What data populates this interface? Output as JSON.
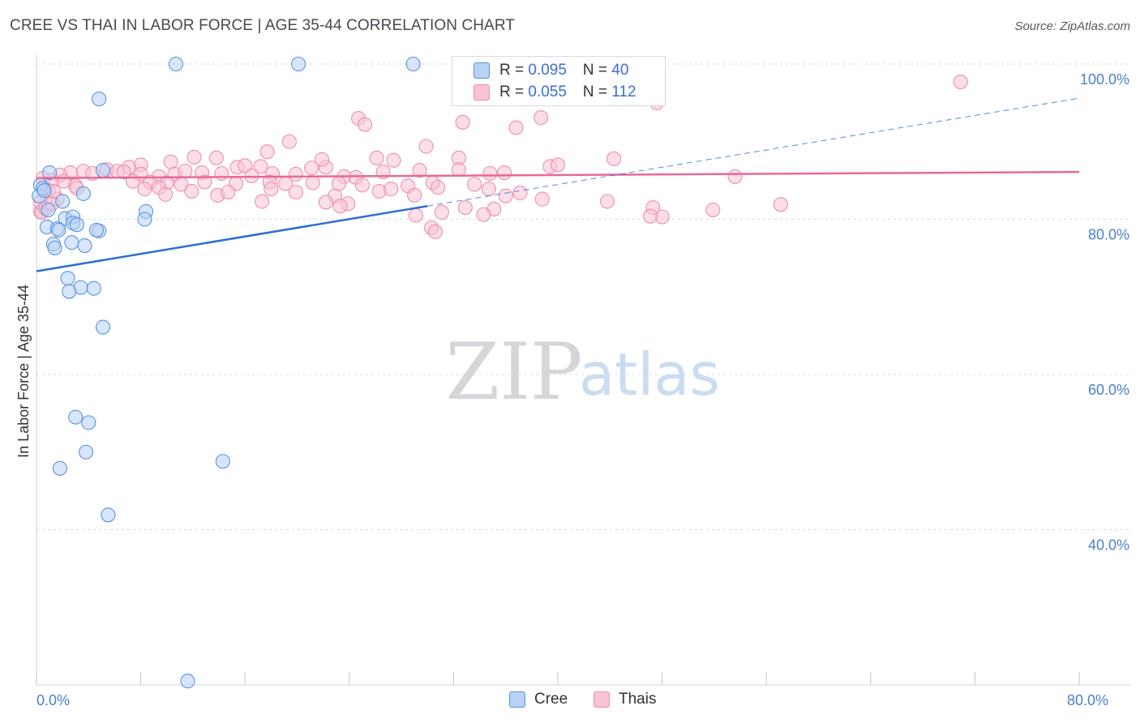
{
  "title": "CREE VS THAI IN LABOR FORCE | AGE 35-44 CORRELATION CHART",
  "source": "Source: ZipAtlas.com",
  "watermark": {
    "zip": "ZIP",
    "atlas": "atlas"
  },
  "colors": {
    "cree_fill": "#b7d2f5",
    "cree_stroke": "#5b93de",
    "cree_line": "#2d6fd0",
    "thai_fill": "#f8c3d4",
    "thai_stroke": "#ec8fb0",
    "thai_line": "#e8689a",
    "axis_text": "#4a7fd0",
    "grid": "#d5d8dc"
  },
  "legend": {
    "cree": {
      "r_label": "R = ",
      "r_value": "0.095",
      "n_label": "N = ",
      "n_value": "40"
    },
    "thai": {
      "r_label": "R = ",
      "r_value": "0.055",
      "n_label": "N = ",
      "n_value": "112"
    }
  },
  "bottom_legend": {
    "cree": "Cree",
    "thai": "Thais"
  },
  "chart_data": {
    "type": "scatter",
    "title": "CREE VS THAI IN LABOR FORCE | AGE 35-44 CORRELATION CHART",
    "xlabel": "",
    "ylabel": "In Labor Force | Age 35-44",
    "xlim": [
      0,
      80
    ],
    "ylim": [
      20,
      100
    ],
    "x_tick_labels": [
      {
        "value": 0,
        "label": "0.0%"
      },
      {
        "value": 80,
        "label": "80.0%"
      }
    ],
    "y_tick_labels": [
      {
        "value": 100,
        "label": "100.0%"
      },
      {
        "value": 80,
        "label": "80.0%"
      },
      {
        "value": 60,
        "label": "60.0%"
      },
      {
        "value": 40,
        "label": "40.0%"
      }
    ],
    "series": [
      {
        "name": "Cree",
        "points": [
          [
            10.7,
            100
          ],
          [
            20.1,
            100
          ],
          [
            28.9,
            100
          ],
          [
            4.8,
            95.5
          ],
          [
            1.0,
            86.0
          ],
          [
            5.1,
            86.3
          ],
          [
            0.3,
            84.4
          ],
          [
            0.2,
            83.0
          ],
          [
            3.6,
            83.3
          ],
          [
            2.0,
            82.3
          ],
          [
            0.9,
            81.2
          ],
          [
            8.4,
            81.0
          ],
          [
            2.2,
            80.1
          ],
          [
            2.8,
            80.3
          ],
          [
            2.8,
            79.5
          ],
          [
            0.8,
            79.0
          ],
          [
            1.6,
            78.8
          ],
          [
            1.7,
            78.6
          ],
          [
            4.8,
            78.5
          ],
          [
            8.3,
            80.0
          ],
          [
            1.3,
            76.8
          ],
          [
            2.7,
            77.0
          ],
          [
            3.7,
            76.6
          ],
          [
            1.4,
            76.3
          ],
          [
            2.4,
            72.4
          ],
          [
            3.4,
            71.2
          ],
          [
            4.4,
            71.1
          ],
          [
            2.5,
            70.7
          ],
          [
            5.1,
            66.1
          ],
          [
            3.0,
            54.5
          ],
          [
            4.0,
            53.8
          ],
          [
            3.8,
            50.0
          ],
          [
            1.8,
            47.9
          ],
          [
            14.3,
            48.8
          ],
          [
            5.5,
            41.9
          ],
          [
            11.6,
            20.5
          ],
          [
            0.5,
            84.0
          ],
          [
            4.6,
            78.6
          ],
          [
            0.6,
            83.7
          ],
          [
            3.1,
            79.3
          ]
        ]
      },
      {
        "name": "Thais",
        "points": [
          [
            70.9,
            97.7
          ],
          [
            47.6,
            95.0
          ],
          [
            24.7,
            93.0
          ],
          [
            25.2,
            92.2
          ],
          [
            32.7,
            92.5
          ],
          [
            36.8,
            91.8
          ],
          [
            38.7,
            93.1
          ],
          [
            19.4,
            90.0
          ],
          [
            29.9,
            89.4
          ],
          [
            17.7,
            88.7
          ],
          [
            12.1,
            88.0
          ],
          [
            13.8,
            87.9
          ],
          [
            26.1,
            87.9
          ],
          [
            27.4,
            87.6
          ],
          [
            32.4,
            87.9
          ],
          [
            44.3,
            87.8
          ],
          [
            10.3,
            87.4
          ],
          [
            8.0,
            87.0
          ],
          [
            7.1,
            86.7
          ],
          [
            15.4,
            86.7
          ],
          [
            16.0,
            86.9
          ],
          [
            17.2,
            86.8
          ],
          [
            21.1,
            86.6
          ],
          [
            22.2,
            86.7
          ],
          [
            39.4,
            86.8
          ],
          [
            5.4,
            86.4
          ],
          [
            6.2,
            86.2
          ],
          [
            3.6,
            86.2
          ],
          [
            2.6,
            86.0
          ],
          [
            1.8,
            85.7
          ],
          [
            4.3,
            85.9
          ],
          [
            6.7,
            86.1
          ],
          [
            8.0,
            85.8
          ],
          [
            9.4,
            85.5
          ],
          [
            10.6,
            85.8
          ],
          [
            11.4,
            86.2
          ],
          [
            12.7,
            86.0
          ],
          [
            14.2,
            85.9
          ],
          [
            16.5,
            85.6
          ],
          [
            18.1,
            85.9
          ],
          [
            19.9,
            85.8
          ],
          [
            23.6,
            85.5
          ],
          [
            24.5,
            85.4
          ],
          [
            26.6,
            86.1
          ],
          [
            29.4,
            86.3
          ],
          [
            32.4,
            86.4
          ],
          [
            34.8,
            85.9
          ],
          [
            35.9,
            86.0
          ],
          [
            53.6,
            85.5
          ],
          [
            0.5,
            85.3
          ],
          [
            1.2,
            85.0
          ],
          [
            2.1,
            84.9
          ],
          [
            3.0,
            84.3
          ],
          [
            7.4,
            84.9
          ],
          [
            8.7,
            84.8
          ],
          [
            10.0,
            84.7
          ],
          [
            11.1,
            84.5
          ],
          [
            12.9,
            84.8
          ],
          [
            15.3,
            84.6
          ],
          [
            17.9,
            84.8
          ],
          [
            19.1,
            84.6
          ],
          [
            21.2,
            84.7
          ],
          [
            23.2,
            84.6
          ],
          [
            25.0,
            84.4
          ],
          [
            28.5,
            84.3
          ],
          [
            30.4,
            84.7
          ],
          [
            33.6,
            84.5
          ],
          [
            0.9,
            83.7
          ],
          [
            3.1,
            84.0
          ],
          [
            8.3,
            83.9
          ],
          [
            9.4,
            84.1
          ],
          [
            11.9,
            83.6
          ],
          [
            13.9,
            83.1
          ],
          [
            14.7,
            83.5
          ],
          [
            18.0,
            83.9
          ],
          [
            19.9,
            83.5
          ],
          [
            22.9,
            83.0
          ],
          [
            26.3,
            83.6
          ],
          [
            27.2,
            83.9
          ],
          [
            29.0,
            83.1
          ],
          [
            30.8,
            84.1
          ],
          [
            36.0,
            83.0
          ],
          [
            37.1,
            83.4
          ],
          [
            1.6,
            82.6
          ],
          [
            9.9,
            83.2
          ],
          [
            17.3,
            82.3
          ],
          [
            22.2,
            82.2
          ],
          [
            23.9,
            82.0
          ],
          [
            34.7,
            83.9
          ],
          [
            38.8,
            82.6
          ],
          [
            43.8,
            82.3
          ],
          [
            57.1,
            81.9
          ],
          [
            35.1,
            81.3
          ],
          [
            31.1,
            80.9
          ],
          [
            32.9,
            81.5
          ],
          [
            34.3,
            80.6
          ],
          [
            47.3,
            81.5
          ],
          [
            48.0,
            80.3
          ],
          [
            47.1,
            80.4
          ],
          [
            51.9,
            81.2
          ],
          [
            29.1,
            80.5
          ],
          [
            30.3,
            78.9
          ],
          [
            30.6,
            78.4
          ],
          [
            23.3,
            81.7
          ],
          [
            0.3,
            81.0
          ],
          [
            0.4,
            80.9
          ],
          [
            0.3,
            82.2
          ],
          [
            0.7,
            81.4
          ],
          [
            1.2,
            82.0
          ],
          [
            1.3,
            83.6
          ],
          [
            21.9,
            87.7
          ],
          [
            40.0,
            87.0
          ]
        ]
      }
    ],
    "trendlines": [
      {
        "series": "Cree",
        "x": [
          0,
          30
        ],
        "y": [
          73.3,
          81.7
        ],
        "extended_x": [
          30,
          80
        ],
        "extended_y": [
          81.7,
          95.6
        ],
        "style": "solid then dashed"
      },
      {
        "series": "Thais",
        "x": [
          0,
          80
        ],
        "y": [
          85.3,
          86.1
        ],
        "style": "solid"
      }
    ]
  }
}
